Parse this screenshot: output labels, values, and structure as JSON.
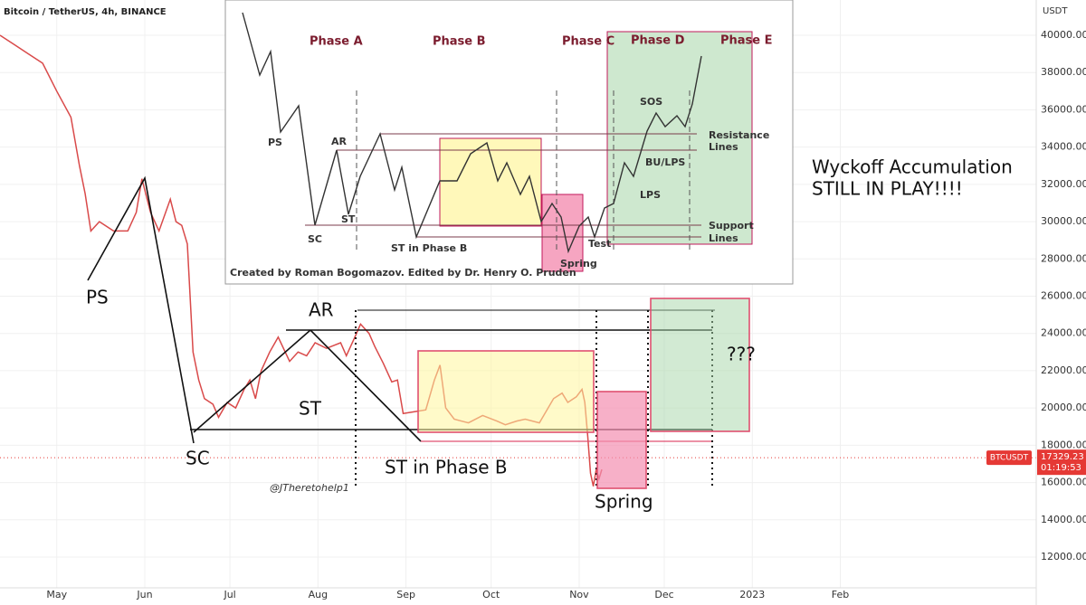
{
  "chart_data": {
    "type": "line",
    "title": "Bitcoin / TetherUS, 4h, BINANCE",
    "unit": "USDT",
    "x": [
      -20,
      -15,
      -10,
      -5,
      0,
      5,
      8,
      10,
      12,
      15,
      20,
      25,
      28,
      30,
      33,
      36,
      40,
      42,
      44,
      46,
      48,
      50,
      52,
      55,
      57,
      60,
      63,
      66,
      68,
      70,
      72,
      75,
      78,
      82,
      85,
      88,
      91,
      95,
      100,
      102,
      105,
      107,
      110,
      112,
      115,
      118,
      120,
      122,
      126,
      130,
      133,
      135,
      137,
      140,
      145,
      150,
      155,
      158,
      162,
      165,
      170,
      175,
      178,
      180,
      183,
      185,
      186,
      187,
      188,
      189,
      190,
      191,
      192
    ],
    "values": [
      40000,
      39500,
      39000,
      38500,
      37000,
      35600,
      33000,
      31500,
      29500,
      30000,
      29500,
      29500,
      30500,
      32300,
      30500,
      29500,
      31200,
      30000,
      29800,
      28800,
      23000,
      21500,
      20500,
      20200,
      19500,
      20300,
      20000,
      21000,
      21500,
      20500,
      22000,
      23000,
      23800,
      22500,
      23000,
      22800,
      23500,
      23200,
      23500,
      22800,
      23800,
      24500,
      24000,
      23300,
      22400,
      21400,
      21500,
      19700,
      19800,
      19900,
      21500,
      22300,
      20000,
      19400,
      19200,
      19600,
      19300,
      19100,
      19300,
      19400,
      19200,
      20500,
      20800,
      20300,
      20600,
      21000,
      20300,
      18500,
      16500,
      15800,
      16700,
      16200,
      16700
    ],
    "color": "#d94a4a",
    "xlim": [
      -20,
      345
    ],
    "xticks": [
      {
        "value": 0,
        "label": "May"
      },
      {
        "value": 31,
        "label": "Jun"
      },
      {
        "value": 61,
        "label": "Jul"
      },
      {
        "value": 92,
        "label": "Aug"
      },
      {
        "value": 123,
        "label": "Sep"
      },
      {
        "value": 153,
        "label": "Oct"
      },
      {
        "value": 184,
        "label": "Nov"
      },
      {
        "value": 214,
        "label": "Dec"
      },
      {
        "value": 245,
        "label": "2023"
      },
      {
        "value": 276,
        "label": "Feb"
      }
    ],
    "ylim": [
      10350,
      41892
    ],
    "yticks": [
      {
        "value": 12000,
        "label": "12000.00"
      },
      {
        "value": 14000,
        "label": "14000.00"
      },
      {
        "value": 16000,
        "label": "16000.00"
      },
      {
        "value": 18000,
        "label": "18000.00"
      },
      {
        "value": 20000,
        "label": "20000.00"
      },
      {
        "value": 22000,
        "label": "22000.00"
      },
      {
        "value": 24000,
        "label": "24000.00"
      },
      {
        "value": 26000,
        "label": "26000.00"
      },
      {
        "value": 28000,
        "label": "28000.00"
      },
      {
        "value": 30000,
        "label": "30000.00"
      },
      {
        "value": 32000,
        "label": "32000.00"
      },
      {
        "value": 34000,
        "label": "34000.00"
      },
      {
        "value": 36000,
        "label": "36000.00"
      },
      {
        "value": 38000,
        "label": "38000.00"
      },
      {
        "value": 40000,
        "label": "40000.00"
      }
    ],
    "last_price": {
      "symbol": "BTCUSDT",
      "value": 17329.23,
      "countdown": "01:19:53"
    },
    "annotations": {
      "ps": "PS",
      "sc": "SC",
      "ar": "AR",
      "st": "ST",
      "st_b": "ST in Phase B",
      "spring": "Spring",
      "unknown": "???",
      "author": "@JTheretohelp1",
      "note1": "Wyckoff Accumulation",
      "note2": "STILL IN PLAY!!!!"
    }
  },
  "inset": {
    "phases": [
      "Phase A",
      "Phase B",
      "Phase C",
      "Phase D",
      "Phase E"
    ],
    "labels": {
      "ps": "PS",
      "ar": "AR",
      "sc": "SC",
      "st": "ST",
      "st_b": "ST in Phase B",
      "spring": "Spring",
      "test": "Test",
      "sos": "SOS",
      "bu": "BU/LPS",
      "lps": "LPS",
      "res1": "Resistance",
      "res2": "Lines",
      "sup1": "Support",
      "sup2": "Lines"
    },
    "credit": "Created by Roman Bogomazov. Edited by Dr. Henry O. Pruden"
  }
}
